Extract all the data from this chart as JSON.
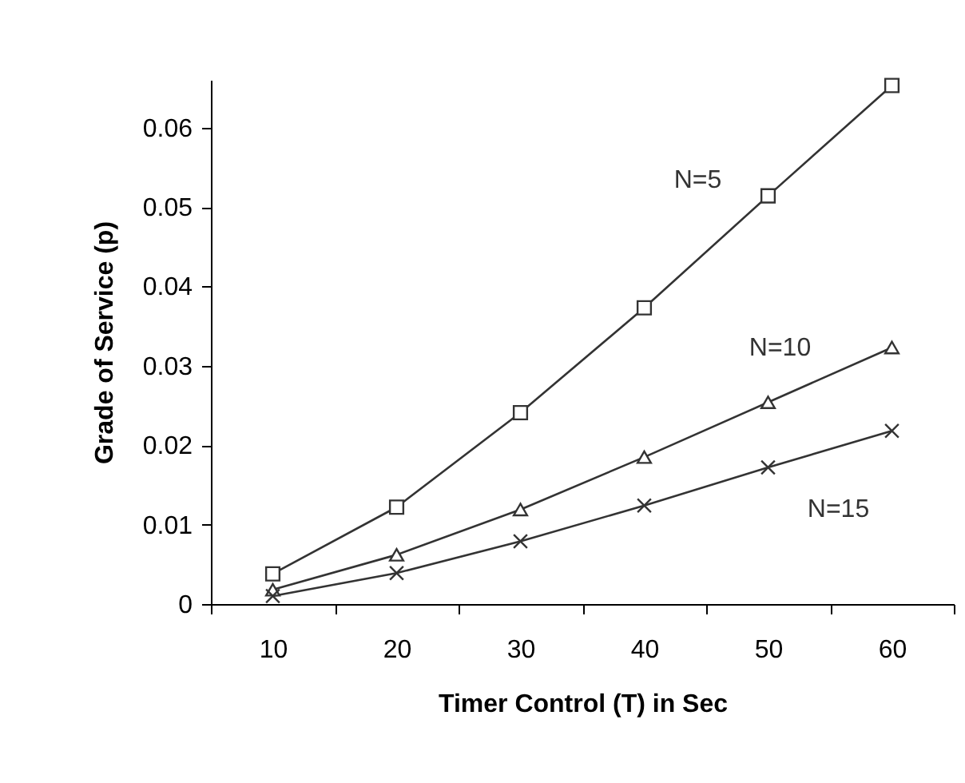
{
  "chart_data": {
    "type": "line",
    "xlabel": "Timer Control (T) in Sec",
    "ylabel": "Grade of Service (p)",
    "categories": [
      "10",
      "20",
      "30",
      "40",
      "50",
      "60"
    ],
    "series": [
      {
        "name": "N=5",
        "color": "#333333",
        "marker": "square",
        "values": [
          0.0038,
          0.0122,
          0.0241,
          0.0373,
          0.0514,
          0.0653
        ]
      },
      {
        "name": "N=10",
        "color": "#333333",
        "marker": "triangle",
        "values": [
          0.0018,
          0.0062,
          0.0119,
          0.0185,
          0.0254,
          0.0323
        ]
      },
      {
        "name": "N=15",
        "color": "#333333",
        "marker": "cross",
        "values": [
          0.001,
          0.0039,
          0.0079,
          0.0124,
          0.0172,
          0.0218
        ]
      }
    ],
    "ylim": [
      0,
      0.066
    ],
    "yticks": [
      0,
      0.01,
      0.02,
      0.03,
      0.04,
      0.05,
      0.06
    ],
    "grid": false,
    "legend": false
  }
}
